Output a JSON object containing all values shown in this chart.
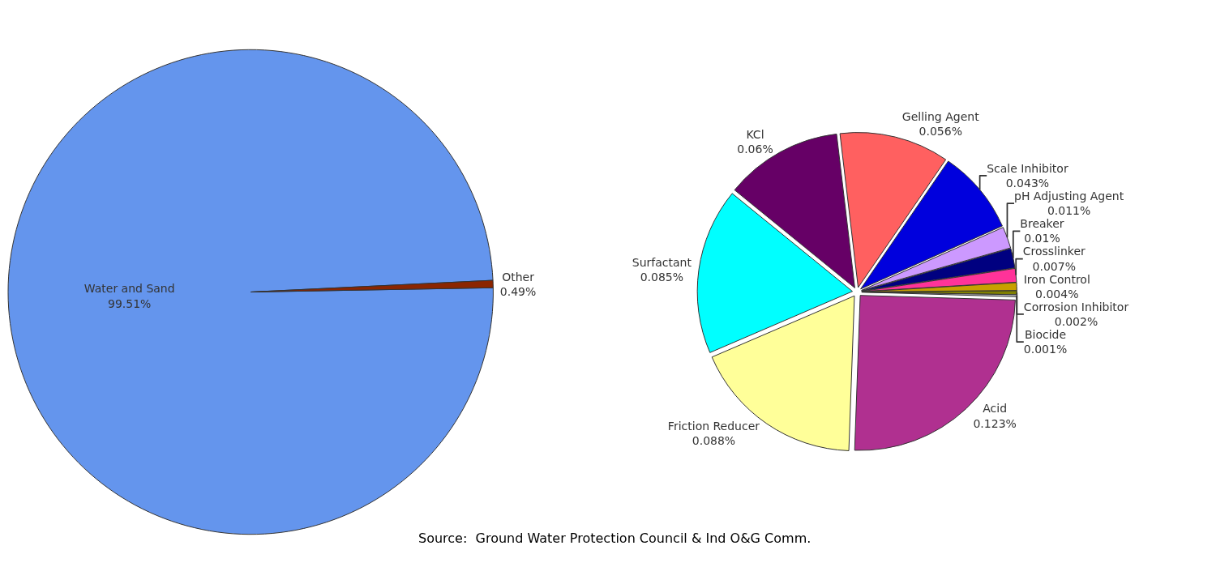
{
  "chart_data": [
    {
      "type": "pie",
      "categories": [
        "Water and Sand",
        "Other"
      ],
      "values": [
        99.51,
        0.49
      ],
      "value_labels": [
        "99.51%",
        "0.49%"
      ],
      "colors": [
        "#6495ed",
        "#8b2500"
      ]
    },
    {
      "type": "pie",
      "categories": [
        "Corrosion Inhibitor",
        "Biocide",
        "Acid",
        "Friction Reducer",
        "Surfactant",
        "KCl",
        "Gelling Agent",
        "Scale Inhibitor",
        "pH Adjusting Agent",
        "Breaker",
        "Crosslinker",
        "Iron Control"
      ],
      "values": [
        0.002,
        0.001,
        0.123,
        0.088,
        0.085,
        0.06,
        0.056,
        0.043,
        0.011,
        0.01,
        0.007,
        0.004
      ],
      "value_labels": [
        "0.002%",
        "0.001%",
        "0.123%",
        "0.088%",
        "0.085%",
        "0.06%",
        "0.056%",
        "0.043%",
        "0.011%",
        "0.01%",
        "0.007%",
        "0.004%"
      ],
      "colors": [
        "#808000",
        "#c0c0c0",
        "#b03090",
        "#ffff99",
        "#00ffff",
        "#660066",
        "#ff6060",
        "#0000dd",
        "#cc99ff",
        "#000080",
        "#ff3399",
        "#c8a000"
      ],
      "annotations": [
        "Source:  Ground Water Protection Council & Ind O&G Comm."
      ]
    }
  ]
}
